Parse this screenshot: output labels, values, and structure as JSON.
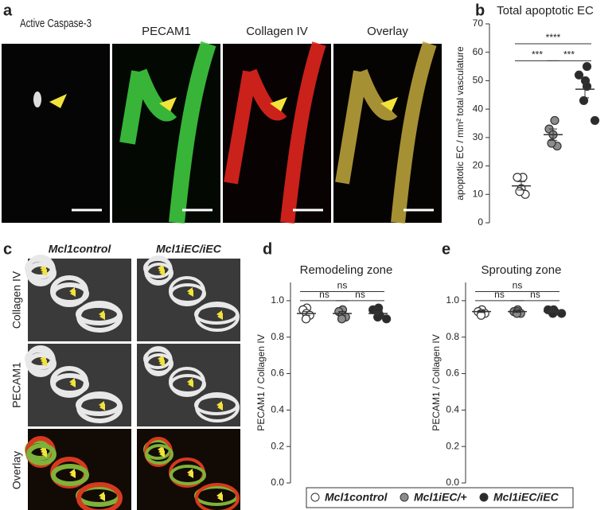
{
  "panel_letters": [
    "a",
    "b",
    "c",
    "d",
    "e"
  ],
  "images_a": [
    "Active Caspase-3",
    "PECAM1",
    "Collagen IV",
    "Overlay"
  ],
  "images_c_rows": [
    "Collagen IV",
    "PECAM1",
    "Overlay"
  ],
  "chart_data": [
    {
      "type": "scatter",
      "title": "Total apoptotic EC",
      "y_label": "apoptotic EC / mm² total vasculature",
      "ylim": [
        0,
        70
      ],
      "yticks": [
        0,
        10,
        20,
        30,
        40,
        50,
        60,
        70
      ],
      "series": [
        {
          "name": "Mcl1control",
          "color": "#ffffff",
          "values": [
            16,
            16,
            12,
            10,
            11
          ]
        },
        {
          "name": "Mcl1iEC/+",
          "color": "#8c8c8c",
          "values": [
            36,
            33,
            31,
            27,
            28
          ]
        },
        {
          "name": "Mcl1iEC/iEC",
          "color": "#2b2b2b",
          "values": [
            55,
            52,
            50,
            48,
            43,
            36
          ]
        }
      ],
      "means": [
        13,
        31,
        47
      ],
      "sems": [
        1.5,
        2,
        3
      ],
      "annotations": [
        {
          "text": "****",
          "groups": [
            0,
            2
          ],
          "y": 63
        },
        {
          "text": "***",
          "groups": [
            0,
            1
          ],
          "y": 57
        },
        {
          "text": "***",
          "groups": [
            1,
            2
          ],
          "y": 57
        }
      ]
    },
    {
      "type": "scatter",
      "title": "Remodeling zone",
      "y_label": "PECAM1 / Collagen IV",
      "ylim": [
        0,
        1.1
      ],
      "yticks": [
        {
          "value": 0,
          "label": "0.0"
        },
        {
          "value": 0.2,
          "label": "0.2"
        },
        {
          "value": 0.4,
          "label": "0.4"
        },
        {
          "value": 0.6,
          "label": "0.6"
        },
        {
          "value": 0.8,
          "label": "0.8"
        },
        {
          "value": 1,
          "label": "1.0"
        }
      ],
      "series": [
        {
          "color": "#ffffff",
          "values": [
            0.96,
            0.95,
            0.93,
            0.92,
            0.9
          ]
        },
        {
          "color": "#8c8c8c",
          "values": [
            0.95,
            0.94,
            0.92,
            0.91,
            0.9
          ]
        },
        {
          "color": "#2b2b2b",
          "values": [
            0.96,
            0.95,
            0.94,
            0.92,
            0.91,
            0.9
          ]
        }
      ],
      "means": [
        0.93,
        0.93,
        0.93
      ],
      "sems": [
        0.01,
        0.01,
        0.01
      ],
      "annotations": [
        {
          "text": "ns",
          "groups": [
            0,
            2
          ],
          "y": 1.05
        },
        {
          "text": "ns",
          "groups": [
            0,
            1
          ],
          "y": 1.0
        },
        {
          "text": "ns",
          "groups": [
            1,
            2
          ],
          "y": 1.0
        }
      ]
    },
    {
      "type": "scatter",
      "title": "Sprouting zone",
      "y_label": "PECAM1 / Collagen IV",
      "ylim": [
        0,
        1.1
      ],
      "yticks": [
        {
          "value": 0,
          "label": "0.0"
        },
        {
          "value": 0.2,
          "label": "0.2"
        },
        {
          "value": 0.4,
          "label": "0.4"
        },
        {
          "value": 0.6,
          "label": "0.6"
        },
        {
          "value": 0.8,
          "label": "0.8"
        },
        {
          "value": 1,
          "label": "1.0"
        }
      ],
      "series": [
        {
          "color": "#ffffff",
          "values": [
            0.95,
            0.94,
            0.93,
            0.93,
            0.92
          ]
        },
        {
          "color": "#8c8c8c",
          "values": [
            0.95,
            0.94,
            0.94,
            0.93,
            0.93
          ]
        },
        {
          "color": "#2b2b2b",
          "values": [
            0.95,
            0.95,
            0.94,
            0.94,
            0.93,
            0.93
          ]
        }
      ],
      "means": [
        0.94,
        0.94,
        0.94
      ],
      "sems": [
        0.005,
        0.005,
        0.005
      ],
      "annotations": [
        {
          "text": "ns",
          "groups": [
            0,
            2
          ],
          "y": 1.05
        },
        {
          "text": "ns",
          "groups": [
            0,
            1
          ],
          "y": 1.0
        },
        {
          "text": "ns",
          "groups": [
            1,
            2
          ],
          "y": 1.0
        }
      ]
    }
  ]
}
